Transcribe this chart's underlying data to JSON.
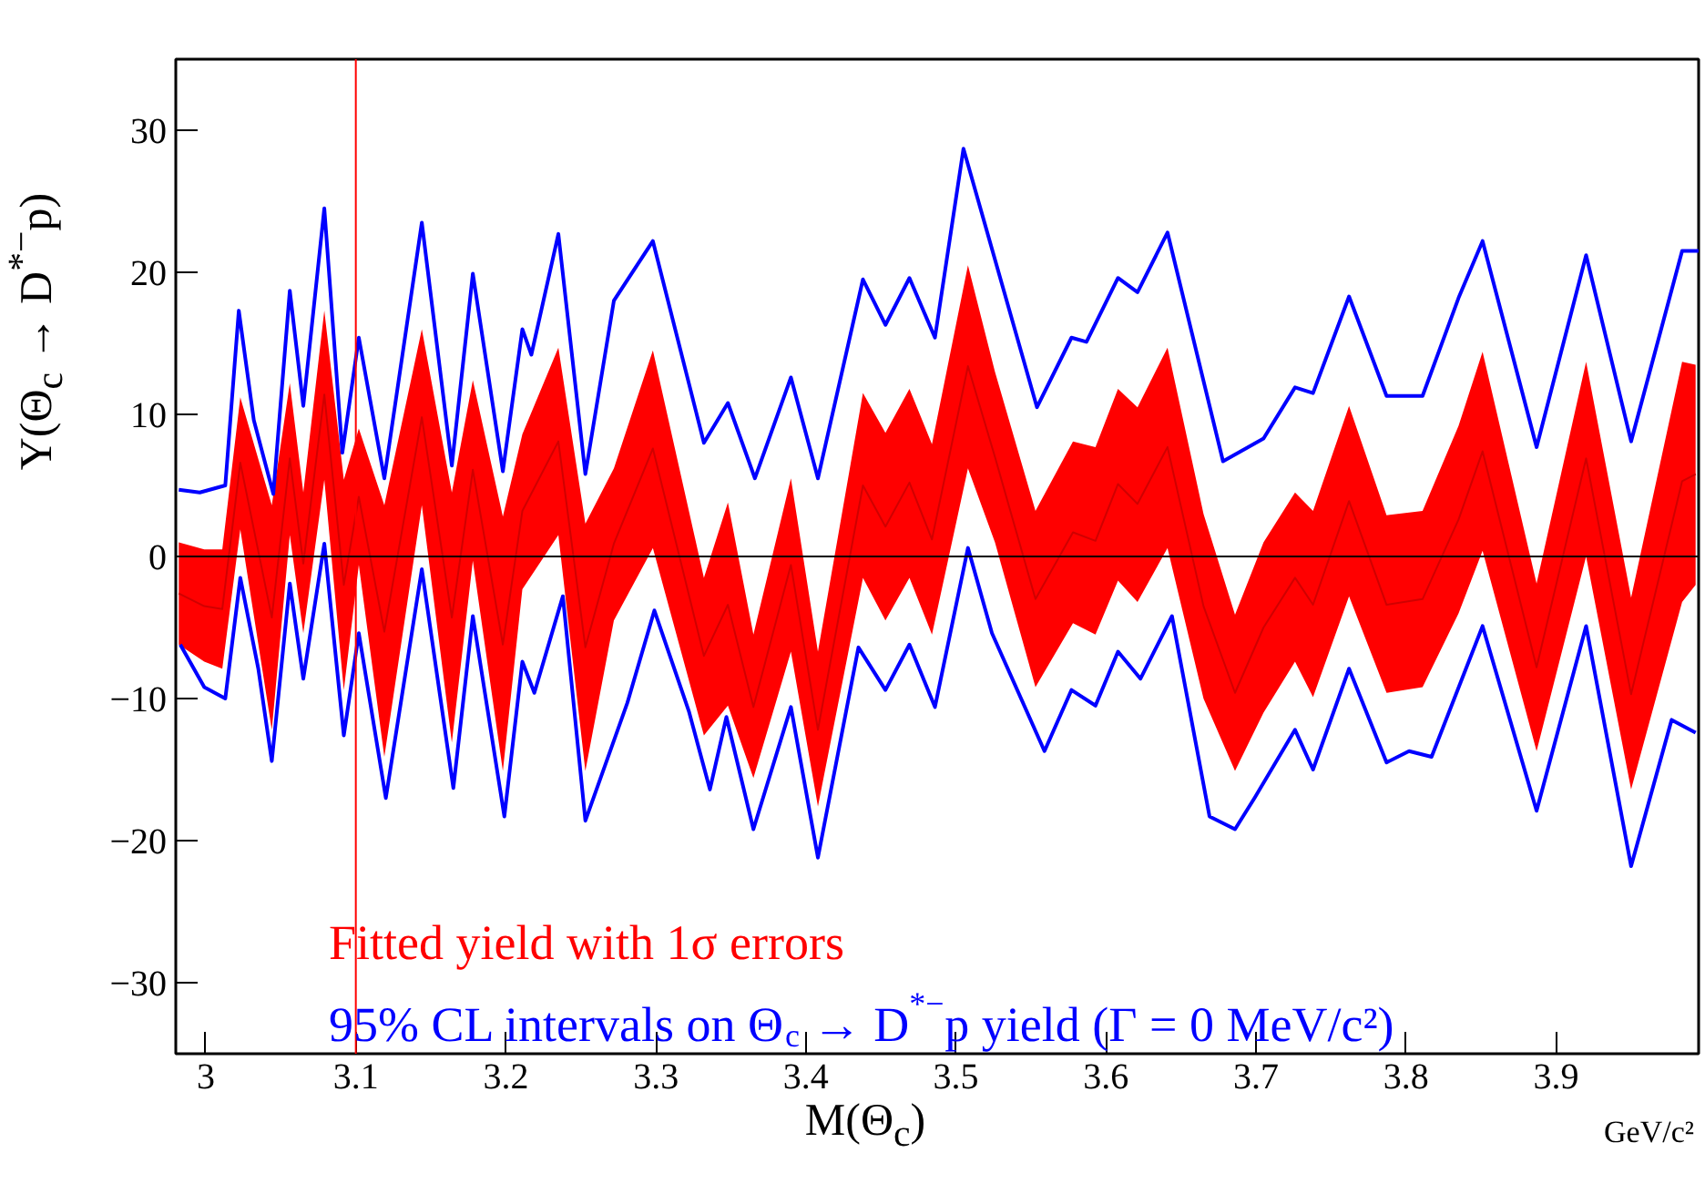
{
  "chart_data": {
    "type": "line",
    "xlabel": "M(Θ$_{c}$)",
    "ylabel": "Y(Θ$_{c}$ → D$^{*−}$p)",
    "annotations": [
      "GeV/c²"
    ],
    "xlim": [
      2.98,
      3.995
    ],
    "ylim": [
      -35,
      35
    ],
    "xticks": [
      3,
      3.1,
      3.2,
      3.3,
      3.4,
      3.5,
      3.6,
      3.7,
      3.8,
      3.9
    ],
    "yticks": [
      -30,
      -20,
      -10,
      0,
      10,
      20,
      30
    ],
    "grid": false,
    "legend": "bottom left",
    "marker": "none",
    "line_style": "solid",
    "ref_lines": [
      {
        "axis": "x",
        "value": 3.1,
        "color": "#ff0000"
      },
      {
        "axis": "y",
        "value": 0,
        "color": "#000000"
      }
    ],
    "series": [
      {
        "name": "Fitted yield with 1σ errors",
        "color": "#ff0000",
        "x": [
          2.982,
          2.999,
          3.011,
          3.023,
          3.044,
          3.056,
          3.065,
          3.079,
          3.092,
          3.102,
          3.119,
          3.144,
          3.164,
          3.178,
          3.198,
          3.211,
          3.235,
          3.253,
          3.272,
          3.298,
          3.332,
          3.348,
          3.365,
          3.39,
          3.408,
          3.438,
          3.453,
          3.469,
          3.484,
          3.508,
          3.526,
          3.553,
          3.578,
          3.593,
          3.608,
          3.621,
          3.641,
          3.665,
          3.686,
          3.705,
          3.726,
          3.738,
          3.762,
          3.787,
          3.811,
          3.835,
          3.851,
          3.887,
          3.92,
          3.95,
          3.984,
          3.993
        ],
        "values": [
          -2.6,
          -3.5,
          -3.7,
          6.6,
          -4.3,
          6.9,
          -0.5,
          11.4,
          -2,
          4.2,
          -5.3,
          9.8,
          -4.3,
          6.1,
          -6.2,
          3.2,
          8.1,
          -6.4,
          0.9,
          7.6,
          -7,
          -3.4,
          -10.6,
          -0.6,
          -12.2,
          5,
          2.1,
          5.2,
          1.2,
          13.4,
          7,
          -3,
          1.7,
          1.1,
          5.1,
          3.7,
          7.7,
          -3.5,
          -9.6,
          -5,
          -1.5,
          -3.4,
          3.9,
          -3.4,
          -3,
          2.6,
          7.4,
          -7.8,
          6.9,
          -9.7,
          5.3,
          5.8
        ],
        "lower": [
          -6.2,
          -7.4,
          -7.9,
          1.9,
          -12.2,
          1.5,
          -5.4,
          5.4,
          -9.4,
          -0.6,
          -14.1,
          3.6,
          -13.1,
          -0.3,
          -15.1,
          -2.3,
          1.5,
          -15.1,
          -4.5,
          0.6,
          -12.6,
          -10.5,
          -15.6,
          -6.7,
          -17.6,
          -1.5,
          -4.5,
          -1.5,
          -5.5,
          6.2,
          1,
          -9.2,
          -4.7,
          -5.5,
          -1.7,
          -3.2,
          0.6,
          -10,
          -15.1,
          -11,
          -7.4,
          -9.9,
          -2.8,
          -9.6,
          -9.2,
          -4,
          0.4,
          -13.7,
          0,
          -16.4,
          -3.2,
          -2
        ],
        "upper": [
          1,
          0.5,
          0.5,
          11.2,
          3.6,
          12.2,
          4.5,
          17.3,
          5.4,
          9,
          3.6,
          16,
          4.5,
          12.4,
          2.8,
          8.6,
          14.7,
          2.3,
          6.2,
          14.5,
          -1.5,
          3.8,
          -5.5,
          5.5,
          -6.7,
          11.5,
          8.7,
          11.8,
          7.9,
          20.5,
          13,
          3.2,
          8.1,
          7.7,
          11.8,
          10.5,
          14.7,
          3,
          -4.1,
          1,
          4.5,
          3.2,
          10.6,
          2.9,
          3.2,
          9.2,
          14.4,
          -1.9,
          13.7,
          -2.9,
          13.7,
          13.5
        ]
      },
      {
        "name": "95% CL intervals on Θ$_{c}$ → D$^{*−}$p yield (Γ = 0 MeV/c²)",
        "color": "#0000ff",
        "x": [
          2.982,
          2.996,
          3.013,
          3.022,
          3.032,
          3.045,
          3.056,
          3.065,
          3.079,
          3.091,
          3.102,
          3.119,
          3.144,
          3.164,
          3.178,
          3.198,
          3.211,
          3.217,
          3.235,
          3.253,
          3.272,
          3.298,
          3.332,
          3.348,
          3.366,
          3.39,
          3.408,
          3.438,
          3.453,
          3.469,
          3.486,
          3.505,
          3.554,
          3.577,
          3.587,
          3.608,
          3.621,
          3.641,
          3.678,
          3.705,
          3.726,
          3.738,
          3.762,
          3.787,
          3.811,
          3.835,
          3.851,
          3.887,
          3.92,
          3.95,
          3.984,
          3.995
        ],
        "values": [
          4.7,
          4.5,
          5,
          17.3,
          9.6,
          4.4,
          18.7,
          10.6,
          24.5,
          7.3,
          15.4,
          5.5,
          23.5,
          6.4,
          19.9,
          6,
          16,
          14.2,
          22.7,
          5.8,
          18,
          22.2,
          8,
          10.8,
          5.5,
          12.6,
          5.5,
          19.5,
          16.3,
          19.6,
          15.4,
          28.7,
          10.5,
          15.4,
          15.1,
          19.6,
          18.6,
          22.8,
          6.7,
          8.3,
          11.9,
          11.5,
          18.3,
          11.3,
          11.3,
          18.2,
          22.2,
          7.7,
          21.2,
          8.1,
          21.5,
          21.5
        ]
      },
      {
        "color": "#0000ff",
        "x": [
          2.983,
          2.999,
          3.013,
          3.023,
          3.035,
          3.044,
          3.056,
          3.065,
          3.079,
          3.092,
          3.102,
          3.12,
          3.144,
          3.165,
          3.178,
          3.199,
          3.211,
          3.219,
          3.238,
          3.253,
          3.281,
          3.299,
          3.322,
          3.336,
          3.347,
          3.365,
          3.39,
          3.408,
          3.435,
          3.453,
          3.469,
          3.486,
          3.508,
          3.524,
          3.559,
          3.577,
          3.593,
          3.608,
          3.623,
          3.644,
          3.669,
          3.686,
          3.699,
          3.726,
          3.738,
          3.762,
          3.787,
          3.802,
          3.817,
          3.851,
          3.887,
          3.92,
          3.95,
          3.977,
          3.993
        ],
        "values": [
          -6.2,
          -9.2,
          -10,
          -1.5,
          -7.9,
          -14.4,
          -1.9,
          -8.6,
          0.9,
          -12.6,
          -5.4,
          -17,
          -0.9,
          -16.3,
          -4.2,
          -18.3,
          -7.4,
          -9.6,
          -2.8,
          -18.6,
          -10.3,
          -3.8,
          -10.9,
          -16.4,
          -11.3,
          -19.2,
          -10.6,
          -21.2,
          -6.4,
          -9.4,
          -6.2,
          -10.6,
          0.6,
          -5.4,
          -13.7,
          -9.4,
          -10.5,
          -6.7,
          -8.6,
          -4.2,
          -18.3,
          -19.2,
          -17,
          -12.2,
          -15,
          -7.9,
          -14.5,
          -13.7,
          -14.1,
          -4.9,
          -17.9,
          -4.9,
          -21.8,
          -11.5,
          -12.4
        ]
      }
    ]
  }
}
